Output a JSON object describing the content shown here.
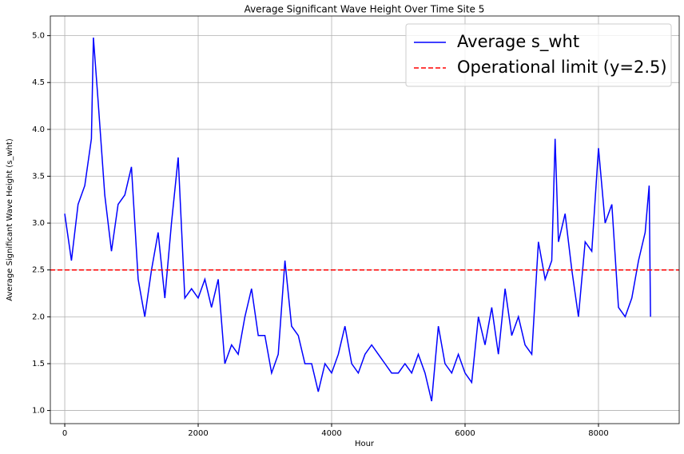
{
  "chart_data": {
    "type": "line",
    "title": "Average Significant Wave Height Over Time Site 5",
    "x_label": "Hour",
    "y_label": "Average Significant Wave Height (s_wht)",
    "x": [
      0,
      100,
      200,
      300,
      400,
      430,
      500,
      600,
      700,
      800,
      900,
      1000,
      1100,
      1200,
      1300,
      1400,
      1500,
      1600,
      1700,
      1800,
      1900,
      2000,
      2100,
      2200,
      2300,
      2400,
      2500,
      2600,
      2700,
      2800,
      2900,
      3000,
      3100,
      3200,
      3300,
      3400,
      3500,
      3600,
      3700,
      3800,
      3900,
      4000,
      4100,
      4200,
      4300,
      4400,
      4500,
      4600,
      4700,
      4800,
      4900,
      5000,
      5100,
      5200,
      5300,
      5400,
      5500,
      5600,
      5700,
      5800,
      5900,
      6000,
      6100,
      6200,
      6300,
      6400,
      6500,
      6600,
      6700,
      6800,
      6900,
      7000,
      7100,
      7200,
      7300,
      7350,
      7400,
      7500,
      7600,
      7700,
      7800,
      7900,
      8000,
      8100,
      8200,
      8300,
      8400,
      8500,
      8600,
      8700,
      8760,
      8780
    ],
    "series": [
      {
        "name": "Average s_wht",
        "color": "#0000ff",
        "values": [
          3.1,
          2.6,
          3.2,
          3.4,
          3.9,
          4.98,
          4.3,
          3.3,
          2.7,
          3.2,
          3.3,
          3.6,
          2.4,
          2.0,
          2.5,
          2.9,
          2.2,
          3.0,
          3.7,
          2.2,
          2.3,
          2.2,
          2.4,
          2.1,
          2.4,
          1.5,
          1.7,
          1.6,
          2.0,
          2.3,
          1.8,
          1.8,
          1.4,
          1.6,
          2.6,
          1.9,
          1.8,
          1.5,
          1.5,
          1.2,
          1.5,
          1.4,
          1.6,
          1.9,
          1.5,
          1.4,
          1.6,
          1.7,
          1.6,
          1.5,
          1.4,
          1.4,
          1.5,
          1.4,
          1.6,
          1.4,
          1.1,
          1.9,
          1.5,
          1.4,
          1.6,
          1.4,
          1.3,
          2.0,
          1.7,
          2.1,
          1.6,
          2.3,
          1.8,
          2.0,
          1.7,
          1.6,
          2.8,
          2.4,
          2.6,
          3.9,
          2.8,
          3.1,
          2.5,
          2.0,
          2.8,
          2.7,
          3.8,
          3.0,
          3.2,
          2.1,
          2.0,
          2.2,
          2.6,
          2.9,
          3.4,
          2.0
        ]
      }
    ],
    "hlines": [
      {
        "y": 2.5,
        "name": "Operational limit (y=2.5)",
        "color": "#ff0000"
      }
    ],
    "xlim": [
      -216,
      9210
    ],
    "ylim": [
      0.86,
      5.21
    ],
    "xticks": [
      0,
      2000,
      4000,
      6000,
      8000
    ],
    "yticks": [
      {
        "value": 1,
        "label": "1.0"
      },
      {
        "value": 1.5,
        "label": "1.5"
      },
      {
        "value": 2,
        "label": "2.0"
      },
      {
        "value": 2.5,
        "label": "2.5"
      },
      {
        "value": 3,
        "label": "3.0"
      },
      {
        "value": 3.5,
        "label": "3.5"
      },
      {
        "value": 4,
        "label": "4.0"
      },
      {
        "value": 4.5,
        "label": "4.5"
      },
      {
        "value": 5,
        "label": "5.0"
      }
    ],
    "grid": true,
    "legend": "upper right"
  }
}
